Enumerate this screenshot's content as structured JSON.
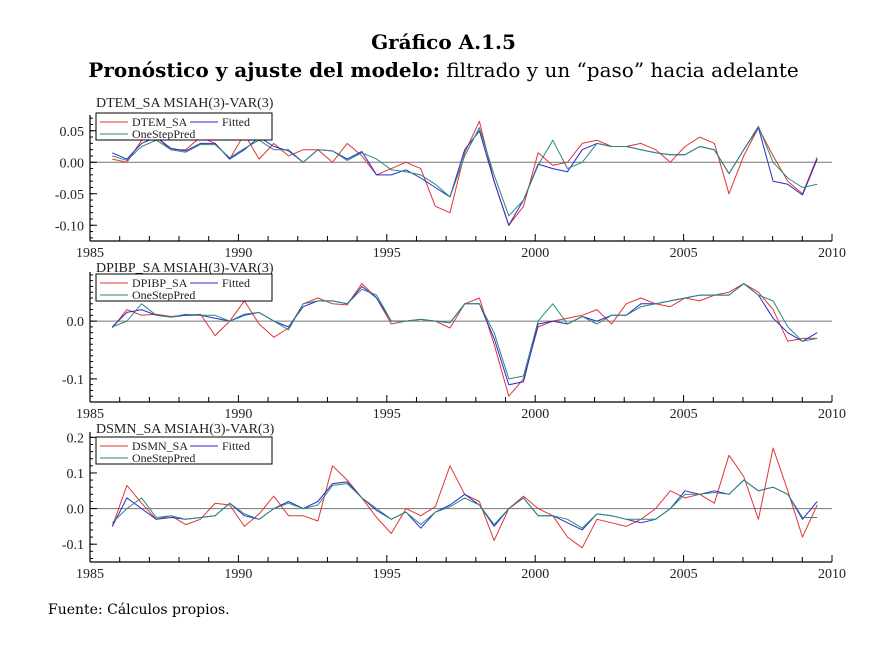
{
  "title": "Gráfico A.1.5",
  "subtitle_bold": "Pronóstico y ajuste del modelo:",
  "subtitle_rest": " filtrado y un “paso” hacia adelante",
  "source": "Fuente: Cálculos propios.",
  "colors": {
    "actual": "#e03535",
    "fitted": "#2a2ad0",
    "onestep": "#2a8a7a",
    "zero": "#777777"
  },
  "chart_data": [
    {
      "type": "line",
      "title": "DTEM_SA MSIAH(3)-VAR(3)",
      "x_start": 1985.75,
      "x_end": 2009.5,
      "xlim": [
        1985,
        2010
      ],
      "xticks": [
        1985,
        1990,
        1995,
        2000,
        2005,
        2010
      ],
      "ylim": [
        -0.125,
        0.075
      ],
      "yticks": [
        -0.1,
        -0.05,
        0.0,
        0.05
      ],
      "ytick_labels": [
        "-0.10",
        "-0.05",
        "0.00",
        "0.05"
      ],
      "legend": [
        "DTEM_SA",
        "Fitted",
        "OneStepPred"
      ],
      "legend_position": "top-left",
      "series": [
        {
          "name": "DTEM_SA",
          "values": [
            0.005,
            0.0,
            0.035,
            0.04,
            0.02,
            0.02,
            0.04,
            0.03,
            0.005,
            0.045,
            0.005,
            0.03,
            0.01,
            0.02,
            0.02,
            0.0,
            0.03,
            0.01,
            -0.02,
            -0.01,
            0.0,
            -0.01,
            -0.07,
            -0.08,
            0.015,
            0.065,
            -0.03,
            -0.1,
            -0.07,
            0.015,
            -0.005,
            0.0,
            0.03,
            0.035,
            0.025,
            0.025,
            0.03,
            0.02,
            0.0,
            0.025,
            0.04,
            0.03,
            -0.05,
            0.01,
            0.055,
            0.01,
            -0.03,
            -0.05,
            0.008
          ]
        },
        {
          "name": "Fitted",
          "values": [
            0.015,
            0.005,
            0.03,
            0.04,
            0.022,
            0.018,
            0.03,
            0.03,
            0.005,
            0.02,
            0.04,
            0.025,
            0.018,
            0.0,
            0.02,
            0.018,
            0.005,
            0.017,
            -0.02,
            -0.02,
            -0.012,
            -0.025,
            -0.04,
            -0.055,
            0.02,
            0.05,
            -0.03,
            -0.1,
            -0.06,
            -0.003,
            -0.01,
            -0.015,
            0.02,
            0.03,
            0.025,
            0.025,
            0.02,
            0.015,
            0.012,
            0.012,
            0.025,
            0.02,
            -0.018,
            0.02,
            0.055,
            -0.03,
            -0.035,
            -0.052,
            0.005
          ]
        },
        {
          "name": "OneStepPred",
          "values": [
            0.01,
            0.003,
            0.025,
            0.035,
            0.02,
            0.016,
            0.028,
            0.028,
            0.007,
            0.022,
            0.035,
            0.02,
            0.02,
            0.0,
            0.02,
            0.018,
            0.003,
            0.015,
            0.005,
            -0.012,
            -0.015,
            -0.02,
            -0.035,
            -0.055,
            0.01,
            0.055,
            -0.02,
            -0.085,
            -0.06,
            -0.005,
            0.035,
            -0.01,
            0.0,
            0.03,
            0.025,
            0.025,
            0.02,
            0.015,
            0.012,
            0.012,
            0.025,
            0.02,
            -0.018,
            0.02,
            0.057,
            0.0,
            -0.025,
            -0.04,
            -0.035
          ]
        }
      ]
    },
    {
      "type": "line",
      "title": "DPIBP_SA MSIAH(3)-VAR(3)",
      "x_start": 1985.75,
      "x_end": 2009.5,
      "xlim": [
        1985,
        2010
      ],
      "xticks": [
        1985,
        1990,
        1995,
        2000,
        2005,
        2010
      ],
      "ylim": [
        -0.14,
        0.085
      ],
      "yticks": [
        -0.1,
        0.0
      ],
      "ytick_labels": [
        "-0.1",
        "0.0"
      ],
      "legend": [
        "DPIBP_SA",
        "Fitted",
        "OneStepPred"
      ],
      "legend_position": "top-left",
      "series": [
        {
          "name": "DPIBP_SA",
          "values": [
            -0.012,
            0.02,
            0.01,
            0.012,
            0.008,
            0.01,
            0.012,
            -0.025,
            0.0,
            0.035,
            -0.005,
            -0.028,
            -0.012,
            0.03,
            0.04,
            0.03,
            0.028,
            0.065,
            0.04,
            -0.005,
            0.0,
            0.003,
            0.0,
            -0.012,
            0.03,
            0.04,
            -0.04,
            -0.13,
            -0.1,
            -0.01,
            0.0,
            0.005,
            0.01,
            0.02,
            -0.005,
            0.03,
            0.04,
            0.03,
            0.025,
            0.04,
            0.035,
            0.045,
            0.05,
            0.065,
            0.05,
            0.02,
            -0.035,
            -0.03,
            -0.03
          ]
        },
        {
          "name": "Fitted",
          "values": [
            -0.01,
            0.015,
            0.02,
            0.01,
            0.007,
            0.01,
            0.01,
            0.005,
            0.0,
            0.01,
            0.015,
            0.0,
            -0.01,
            0.025,
            0.035,
            0.035,
            0.03,
            0.06,
            0.04,
            0.0,
            0.0,
            0.003,
            0.0,
            -0.003,
            0.03,
            0.03,
            -0.03,
            -0.11,
            -0.105,
            -0.005,
            0.0,
            -0.005,
            0.008,
            0.0,
            0.01,
            0.01,
            0.03,
            0.03,
            0.035,
            0.04,
            0.045,
            0.045,
            0.045,
            0.065,
            0.045,
            0.005,
            -0.02,
            -0.035,
            -0.02
          ]
        },
        {
          "name": "OneStepPred",
          "values": [
            -0.01,
            0.0,
            0.03,
            0.01,
            0.007,
            0.012,
            0.01,
            0.01,
            0.0,
            0.012,
            0.015,
            0.0,
            -0.015,
            0.03,
            0.035,
            0.035,
            0.03,
            0.055,
            0.045,
            0.0,
            0.0,
            0.003,
            0.0,
            -0.003,
            0.03,
            0.03,
            -0.02,
            -0.1,
            -0.095,
            0.0,
            0.03,
            -0.005,
            0.008,
            -0.005,
            0.01,
            0.01,
            0.025,
            0.03,
            0.035,
            0.04,
            0.045,
            0.045,
            0.045,
            0.065,
            0.045,
            0.035,
            -0.01,
            -0.035,
            -0.03
          ]
        }
      ]
    },
    {
      "type": "line",
      "title": "DSMN_SA MSIAH(3)-VAR(3)",
      "x_start": 1985.75,
      "x_end": 2009.5,
      "xlim": [
        1985,
        2010
      ],
      "xticks": [
        1985,
        1990,
        1995,
        2000,
        2005,
        2010
      ],
      "ylim": [
        -0.15,
        0.215
      ],
      "yticks": [
        -0.1,
        0.0,
        0.1,
        0.2
      ],
      "ytick_labels": [
        "-0.1",
        "0.0",
        "0.1",
        "0.2"
      ],
      "legend": [
        "DSMN_SA",
        "Fitted",
        "OneStepPred"
      ],
      "legend_position": "top-left",
      "series": [
        {
          "name": "DSMN_SA",
          "values": [
            -0.05,
            0.065,
            0.015,
            -0.03,
            -0.02,
            -0.045,
            -0.03,
            0.015,
            0.01,
            -0.05,
            -0.015,
            0.035,
            -0.02,
            -0.02,
            -0.035,
            0.12,
            0.08,
            0.03,
            -0.025,
            -0.07,
            0.0,
            -0.02,
            0.005,
            0.12,
            0.04,
            0.02,
            -0.09,
            0.0,
            0.035,
            0.0,
            -0.02,
            -0.08,
            -0.11,
            -0.03,
            -0.04,
            -0.05,
            -0.03,
            0.0,
            0.05,
            0.03,
            0.04,
            0.015,
            0.15,
            0.09,
            -0.03,
            0.17,
            0.05,
            -0.08,
            0.01
          ]
        },
        {
          "name": "Fitted",
          "values": [
            -0.05,
            0.03,
            0.0,
            -0.03,
            -0.025,
            -0.03,
            -0.025,
            -0.02,
            0.015,
            -0.02,
            -0.03,
            0.0,
            0.02,
            0.0,
            0.02,
            0.07,
            0.075,
            0.03,
            -0.005,
            -0.03,
            -0.01,
            -0.055,
            -0.01,
            0.01,
            0.04,
            0.01,
            -0.05,
            0.0,
            0.03,
            -0.02,
            -0.02,
            -0.04,
            -0.06,
            -0.015,
            -0.02,
            -0.03,
            -0.04,
            -0.03,
            0.0,
            0.05,
            0.04,
            0.05,
            0.04,
            0.08,
            0.05,
            0.06,
            0.04,
            -0.03,
            0.02
          ]
        },
        {
          "name": "OneStepPred",
          "values": [
            -0.04,
            0.0,
            0.03,
            -0.025,
            -0.02,
            -0.03,
            -0.025,
            -0.02,
            0.015,
            -0.015,
            -0.03,
            0.0,
            0.015,
            0.0,
            0.01,
            0.065,
            0.07,
            0.03,
            0.0,
            -0.03,
            -0.01,
            -0.045,
            -0.01,
            0.005,
            0.03,
            0.01,
            -0.045,
            0.0,
            0.03,
            -0.02,
            -0.02,
            -0.03,
            -0.055,
            -0.015,
            -0.02,
            -0.03,
            -0.03,
            -0.03,
            0.0,
            0.04,
            0.04,
            0.045,
            0.04,
            0.08,
            0.05,
            0.06,
            0.04,
            -0.025,
            -0.025
          ]
        }
      ]
    }
  ]
}
